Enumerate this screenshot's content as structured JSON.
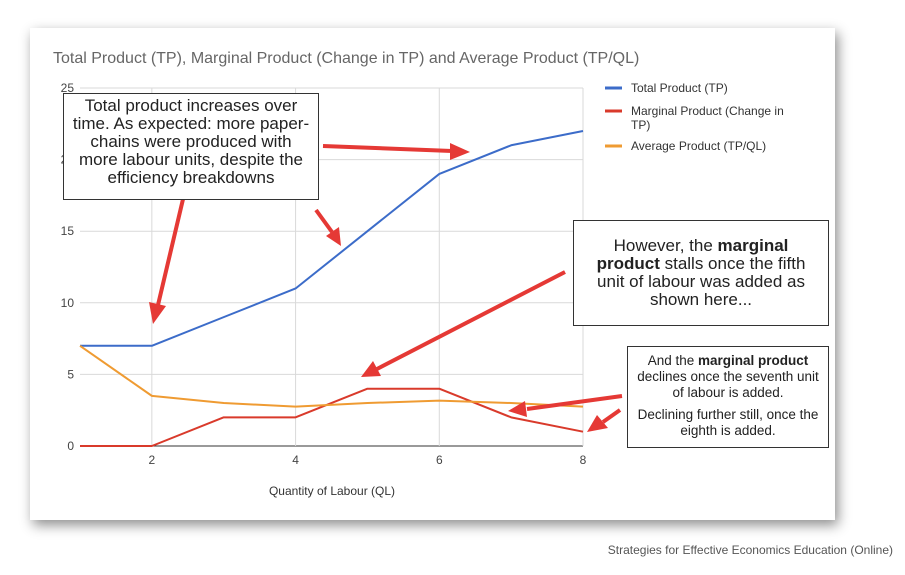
{
  "chart_data": {
    "type": "line",
    "title": "Total Product (TP), Marginal Product (Change in TP) and Average Product (TP/QL)",
    "xlabel": "Quantity of Labour (QL)",
    "ylabel": "",
    "x": [
      1,
      2,
      3,
      4,
      5,
      6,
      7,
      8
    ],
    "xlim": [
      1,
      8
    ],
    "ylim": [
      0,
      25
    ],
    "xticks": [
      2,
      4,
      6,
      8
    ],
    "yticks": [
      0,
      5,
      10,
      15,
      20,
      25
    ],
    "legend_position": "right",
    "series": [
      {
        "name": "Total Product (TP)",
        "color": "#3c6cc9",
        "values": [
          7,
          7,
          9,
          11,
          15,
          19,
          21,
          22
        ]
      },
      {
        "name": "Marginal Product (Change in TP)",
        "color": "#d93a2b",
        "values": [
          0,
          0,
          2,
          2,
          4,
          4,
          2,
          1
        ]
      },
      {
        "name": "Average Product (TP/QL)",
        "color": "#ef9b32",
        "values": [
          7,
          3.5,
          3,
          2.75,
          3,
          3.17,
          3,
          2.75
        ]
      }
    ]
  },
  "legend": {
    "tp": "Total Product (TP)",
    "mp_line1": "Marginal Product (Change in",
    "mp_line2": "TP)",
    "ap": "Average Product (TP/QL)"
  },
  "annotations": {
    "tp_note": "Total product increases over time. As expected: more paper-chains were produced with more labour units, despite the efficiency breakdowns",
    "mp_note_pre": "However, the ",
    "mp_note_bold": "marginal product",
    "mp_note_post": " stalls once the fifth unit of labour was added as shown here...",
    "mp_decline_pre": "And the ",
    "mp_decline_bold": "marginal product",
    "mp_decline_post": " declines once the seventh unit of labour is added.",
    "mp_further": "Declining further still, once the eighth is added.",
    "arrow_color": "#e53935"
  },
  "footer": "Strategies for Effective Economics Education (Online)"
}
